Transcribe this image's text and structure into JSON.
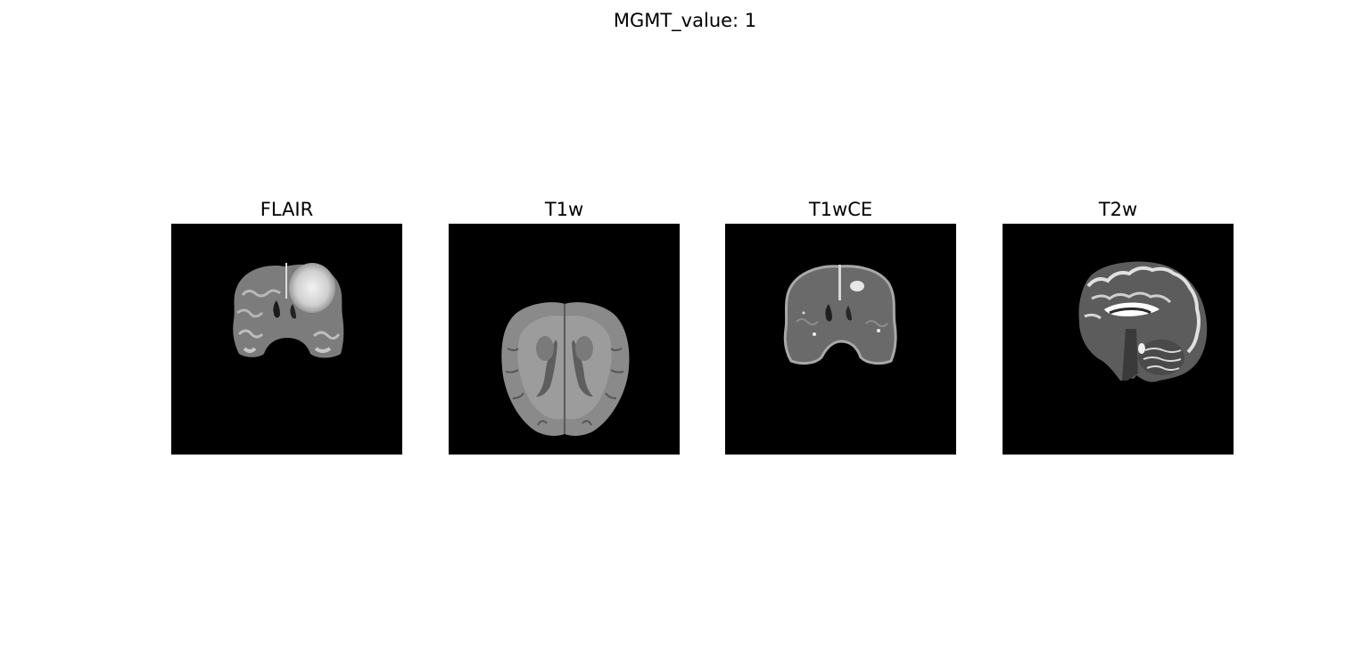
{
  "figure": {
    "title": "MGMT_value: 1"
  },
  "panels": [
    {
      "title": "FLAIR",
      "view": "coronal"
    },
    {
      "title": "T1w",
      "view": "axial"
    },
    {
      "title": "T1wCE",
      "view": "coronal"
    },
    {
      "title": "T2w",
      "view": "sagittal"
    }
  ],
  "colors": {
    "background": "#ffffff",
    "image_background": "#000000"
  }
}
